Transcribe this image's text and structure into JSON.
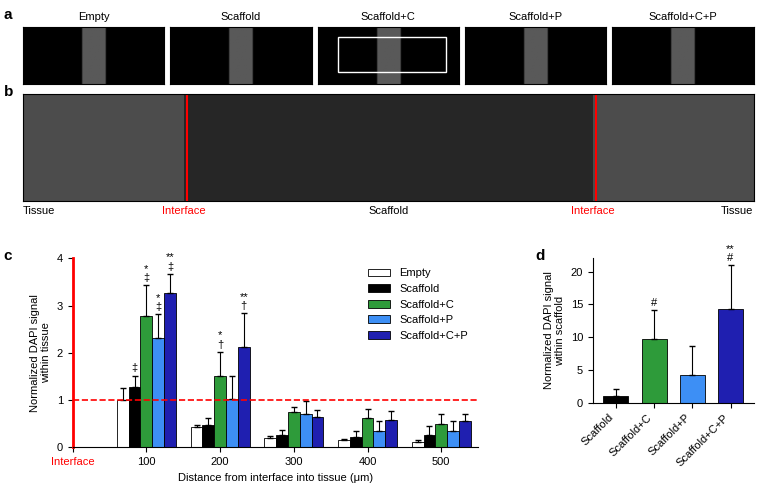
{
  "image_panels": {
    "a": {
      "panel_label": "a",
      "labels": [
        "Empty",
        "Scaffold",
        "Scaffold+C",
        "Scaffold+P",
        "Scaffold+C+P"
      ]
    },
    "b": {
      "panel_label": "b",
      "labels": [
        "Tissue",
        "Interface",
        "Scaffold",
        "Interface",
        "Tissue"
      ]
    }
  },
  "chart_data": [
    {
      "panel_label": "c",
      "type": "bar",
      "x": [
        100,
        200,
        300,
        400,
        500
      ],
      "xlim": [
        0,
        550
      ],
      "xticks": [
        {
          "value": 0,
          "label": "Interface"
        },
        100,
        200,
        300,
        400,
        500
      ],
      "ylim": [
        0,
        4
      ],
      "yticks": [
        0,
        1,
        2,
        3,
        4
      ],
      "x_label": "Distance from interface into tissue (μm)",
      "y_label": "Normalized DAPI signal\nwithin tissue",
      "legend": "upper right",
      "reference_line": {
        "y": 1,
        "color": "#ff0000"
      },
      "series": [
        {
          "name": "Empty",
          "color": "#ffffff",
          "values": [
            1.0,
            0.42,
            0.2,
            0.15,
            0.12
          ],
          "errors": [
            0.25,
            0.05,
            0.03,
            0.03,
            0.03
          ]
        },
        {
          "name": "Scaffold",
          "color": "#000000",
          "values": [
            1.27,
            0.47,
            0.25,
            0.22,
            0.25
          ],
          "errors": [
            0.25,
            0.15,
            0.12,
            0.12,
            0.2
          ]
        },
        {
          "name": "Scaffold+C",
          "color": "#2e9b3a",
          "values": [
            2.78,
            1.52,
            0.75,
            0.62,
            0.5
          ],
          "errors": [
            0.65,
            0.5,
            0.1,
            0.2,
            0.2
          ]
        },
        {
          "name": "Scaffold+P",
          "color": "#3d8ff5",
          "values": [
            2.32,
            1.02,
            0.7,
            0.35,
            0.35
          ],
          "errors": [
            0.5,
            0.5,
            0.28,
            0.2,
            0.2
          ]
        },
        {
          "name": "Scaffold+C+P",
          "color": "#1f1fb0",
          "values": [
            3.27,
            2.12,
            0.65,
            0.57,
            0.55
          ],
          "errors": [
            0.4,
            0.72,
            0.15,
            0.2,
            0.15
          ]
        }
      ],
      "annotations": [
        {
          "series": "Scaffold",
          "x": 100,
          "text": "‡"
        },
        {
          "series": "Scaffold+C",
          "x": 100,
          "text": "*\n‡"
        },
        {
          "series": "Scaffold+P",
          "x": 100,
          "text": "*\n‡"
        },
        {
          "series": "Scaffold+C+P",
          "x": 100,
          "text": "**\n‡"
        },
        {
          "series": "Scaffold+C",
          "x": 200,
          "text": "*\n†"
        },
        {
          "series": "Scaffold+C+P",
          "x": 200,
          "text": "**\n†"
        }
      ]
    },
    {
      "panel_label": "d",
      "type": "bar",
      "categories": [
        "Scaffold",
        "Scaffold+C",
        "Scaffold+P",
        "Scaffold+C+P"
      ],
      "values": [
        1.0,
        9.7,
        4.2,
        14.3
      ],
      "errors": [
        1.0,
        4.5,
        4.5,
        6.7
      ],
      "colors": [
        "#000000",
        "#2e9b3a",
        "#3d8ff5",
        "#1f1fb0"
      ],
      "ylim": [
        0,
        22
      ],
      "yticks": [
        0,
        5,
        10,
        15,
        20
      ],
      "y_label": "Normalized DAPI signal\nwithin scaffold",
      "annotations": [
        {
          "category": "Scaffold+C",
          "text": "#"
        },
        {
          "category": "Scaffold+C+P",
          "text": "**\n#"
        }
      ]
    }
  ]
}
